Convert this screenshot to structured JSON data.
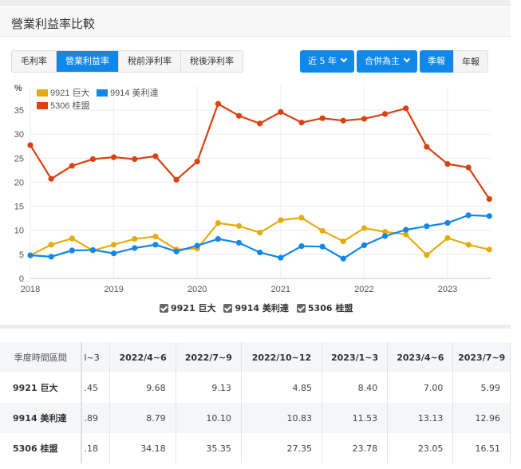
{
  "panel": {
    "title": "營業利益率比較"
  },
  "tabs": [
    {
      "label": "毛利率",
      "active": false
    },
    {
      "label": "營業利益率",
      "active": true
    },
    {
      "label": "稅前淨利率",
      "active": false
    },
    {
      "label": "稅後淨利率",
      "active": false
    }
  ],
  "controls": {
    "range_label": "近 5 年",
    "basis_label": "合併為主",
    "quarterly_label": "季報",
    "annual_label": "年報"
  },
  "colors": {
    "yellow": "#e4ac12",
    "blue": "#1187e8",
    "red": "#d9410f",
    "accent": "#1187e8"
  },
  "chart_data": {
    "type": "line",
    "title": "營業利益率比較",
    "ylabel": "%",
    "xlabel": "",
    "ylim": [
      0,
      37
    ],
    "yticks": [
      0,
      5,
      10,
      15,
      20,
      25,
      30,
      35
    ],
    "xticks": [
      "2018",
      "2019",
      "2020",
      "2021",
      "2022",
      "2023"
    ],
    "x": [
      "2018Q1",
      "2018Q2",
      "2018Q3",
      "2018Q4",
      "2019Q1",
      "2019Q2",
      "2019Q3",
      "2019Q4",
      "2020Q1",
      "2020Q2",
      "2020Q3",
      "2020Q4",
      "2021Q1",
      "2021Q2",
      "2021Q3",
      "2021Q4",
      "2022Q1",
      "2022Q2",
      "2022Q3",
      "2022Q4",
      "2023Q1",
      "2023Q2",
      "2023Q3"
    ],
    "grid": true,
    "legend_position": "top-left",
    "series": [
      {
        "name": "9921 巨大",
        "color": "#e4ac12",
        "values": [
          4.8,
          7.0,
          8.3,
          5.8,
          7.0,
          8.2,
          8.7,
          6.0,
          6.2,
          11.5,
          10.9,
          9.5,
          12.1,
          12.6,
          9.9,
          7.7,
          10.45,
          9.68,
          9.13,
          4.85,
          8.4,
          7.0,
          5.99
        ]
      },
      {
        "name": "9914 美利達",
        "color": "#1187e8",
        "values": [
          4.8,
          4.5,
          5.8,
          5.9,
          5.2,
          6.3,
          7.0,
          5.6,
          6.8,
          8.2,
          7.4,
          5.4,
          4.3,
          6.7,
          6.6,
          4.1,
          6.89,
          8.79,
          10.1,
          10.83,
          11.53,
          13.13,
          12.96
        ]
      },
      {
        "name": "5306 桂盟",
        "color": "#d9410f",
        "values": [
          27.7,
          20.7,
          23.4,
          24.8,
          25.2,
          24.8,
          25.4,
          20.5,
          24.3,
          36.3,
          33.8,
          32.2,
          34.6,
          32.4,
          33.3,
          32.8,
          33.18,
          34.18,
          35.35,
          27.35,
          23.78,
          23.05,
          16.51
        ]
      }
    ]
  },
  "legend_bottom": [
    {
      "label": "9921 巨大",
      "checked": true
    },
    {
      "label": "9914 美利達",
      "checked": true
    },
    {
      "label": "5306 桂盟",
      "checked": true
    }
  ],
  "table": {
    "header_label": "季度時間區間",
    "partial_col": "l~3",
    "columns": [
      "2022/4~6",
      "2022/7~9",
      "2022/10~12",
      "2023/1~3",
      "2023/4~6",
      "2023/7~9"
    ],
    "rows": [
      {
        "name": "9921 巨大",
        "partial": ".45",
        "values": [
          "9.68",
          "9.13",
          "4.85",
          "8.40",
          "7.00",
          "5.99"
        ]
      },
      {
        "name": "9914 美利達",
        "partial": ".89",
        "values": [
          "8.79",
          "10.10",
          "10.83",
          "11.53",
          "13.13",
          "12.96"
        ]
      },
      {
        "name": "5306 桂盟",
        "partial": ".18",
        "values": [
          "34.18",
          "35.35",
          "27.35",
          "23.78",
          "23.05",
          "16.51"
        ]
      }
    ]
  }
}
